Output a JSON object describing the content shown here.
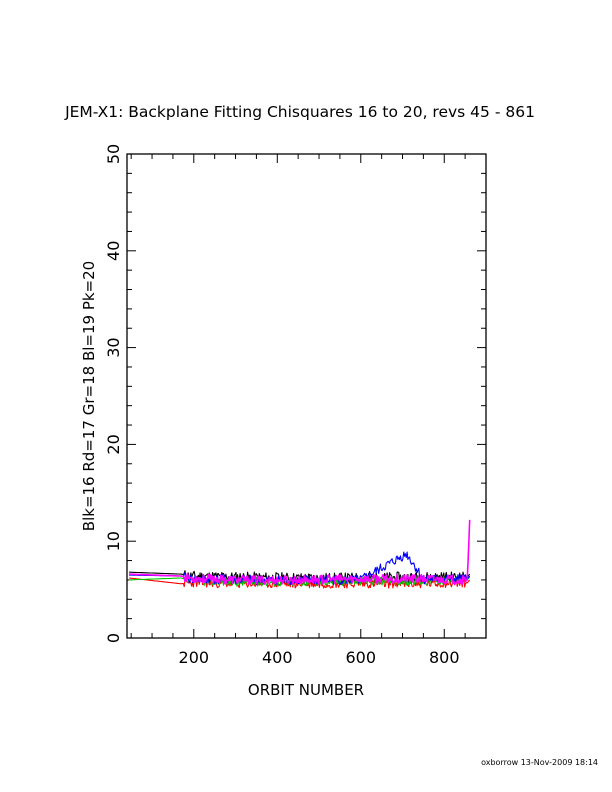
{
  "chart_data": {
    "type": "line",
    "title": "JEM-X1: Backplane Fitting Chisquares 16 to 20, revs 45 - 861",
    "xlabel": "ORBIT NUMBER",
    "ylabel": "Blk=16  Rd=17  Gr=18  Bl=19  Pk=20",
    "xlim": [
      40,
      900
    ],
    "ylim": [
      0,
      50
    ],
    "xticks": [
      200,
      400,
      600,
      800
    ],
    "yticks": [
      0,
      10,
      20,
      30,
      40,
      50
    ],
    "grid": false,
    "series": [
      {
        "color": "#000000",
        "points": [
          [
            45,
            6.8
          ],
          [
            170,
            6.6
          ],
          [
            190,
            6.4
          ],
          [
            300,
            6.3
          ],
          [
            450,
            6.2
          ],
          [
            600,
            6.2
          ],
          [
            750,
            6.3
          ],
          [
            855,
            6.3
          ],
          [
            861,
            6.6
          ]
        ],
        "noise": 0.55,
        "seed": 11
      },
      {
        "color": "#ff0000",
        "points": [
          [
            45,
            6.2
          ],
          [
            170,
            5.6
          ],
          [
            190,
            5.7
          ],
          [
            300,
            5.6
          ],
          [
            450,
            5.6
          ],
          [
            600,
            5.6
          ],
          [
            750,
            5.6
          ],
          [
            855,
            5.7
          ],
          [
            861,
            6.0
          ]
        ],
        "noise": 0.45,
        "seed": 23
      },
      {
        "color": "#00c800",
        "points": [
          [
            45,
            6.0
          ],
          [
            170,
            6.2
          ],
          [
            190,
            5.9
          ],
          [
            300,
            5.8
          ],
          [
            450,
            5.8
          ],
          [
            600,
            5.9
          ],
          [
            750,
            5.9
          ],
          [
            855,
            6.0
          ],
          [
            861,
            6.3
          ]
        ],
        "noise": 0.45,
        "seed": 37
      },
      {
        "color": "#0000ff",
        "points": [
          [
            45,
            6.5
          ],
          [
            170,
            6.4
          ],
          [
            190,
            6.1
          ],
          [
            300,
            6.0
          ],
          [
            450,
            6.0
          ],
          [
            600,
            6.0
          ],
          [
            710,
            8.7
          ],
          [
            750,
            6.1
          ],
          [
            855,
            6.1
          ],
          [
            861,
            6.4
          ]
        ],
        "noise": 0.5,
        "seed": 41
      },
      {
        "color": "#ff00ff",
        "points": [
          [
            45,
            6.6
          ],
          [
            170,
            6.4
          ],
          [
            190,
            6.2
          ],
          [
            300,
            6.0
          ],
          [
            450,
            6.0
          ],
          [
            600,
            6.1
          ],
          [
            750,
            6.1
          ],
          [
            855,
            6.0
          ],
          [
            858,
            9.0
          ],
          [
            861,
            12.2
          ]
        ],
        "noise": 0.45,
        "seed": 53
      }
    ]
  },
  "footer": "oxborrow 13-Nov-2009 18:14"
}
